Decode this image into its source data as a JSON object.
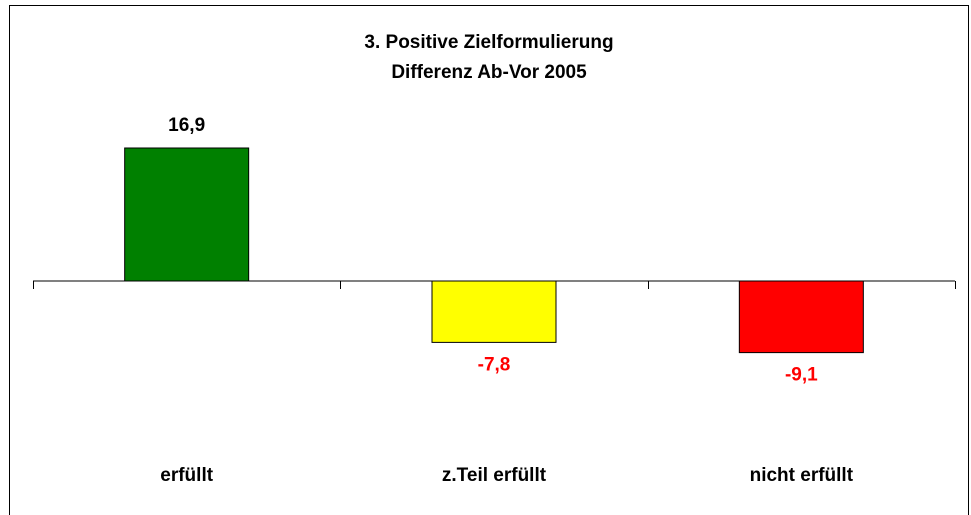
{
  "chart_data": {
    "type": "bar",
    "title": "3. Positive Zielformulierung",
    "subtitle": "Differenz Ab-Vor 2005",
    "categories": [
      "erfüllt",
      "z.Teil erfüllt",
      "nicht erfüllt"
    ],
    "values": [
      16.9,
      -7.8,
      -9.1
    ],
    "value_labels": [
      "16,9",
      "-7,8",
      "-9,1"
    ],
    "colors": [
      "#008000",
      "#ffff00",
      "#ff0000"
    ],
    "value_label_colors": [
      "#000000",
      "#ff0000",
      "#ff0000"
    ]
  }
}
